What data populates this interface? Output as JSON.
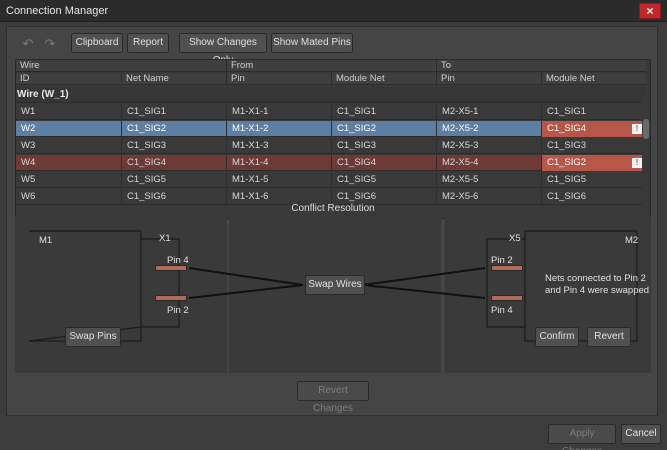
{
  "window": {
    "title": "Connection Manager",
    "close_label": "×"
  },
  "toolbar": {
    "undo_icon": "undo-icon",
    "redo_icon": "redo-icon",
    "buttons": [
      "Clipboard",
      "Report",
      "Show Changes Only",
      "Show Mated Pins"
    ]
  },
  "grid": {
    "group_headers": {
      "wire": "Wire",
      "from": "From",
      "to": "To"
    },
    "columns": [
      "ID",
      "Net Name",
      "Pin",
      "Module Net",
      "Pin",
      "Module Net"
    ],
    "group_label": "Wire (W_1)",
    "rows": [
      {
        "id": "W1",
        "net": "C1_SIG1",
        "from_pin": "M1-X1-1",
        "from_net": "C1_SIG1",
        "to_pin": "M2-X5-1",
        "to_net": "C1_SIG1",
        "state": "normal"
      },
      {
        "id": "W2",
        "net": "C1_SIG2",
        "from_pin": "M1-X1-2",
        "from_net": "C1_SIG2",
        "to_pin": "M2-X5-2",
        "to_net": "C1_SIG4",
        "state": "selected"
      },
      {
        "id": "W3",
        "net": "C1_SIG3",
        "from_pin": "M1-X1-3",
        "from_net": "C1_SIG3",
        "to_pin": "M2-X5-3",
        "to_net": "C1_SIG3",
        "state": "normal"
      },
      {
        "id": "W4",
        "net": "C1_SIG4",
        "from_pin": "M1-X1-4",
        "from_net": "C1_SIG4",
        "to_pin": "M2-X5-4",
        "to_net": "C1_SIG2",
        "state": "conflict"
      },
      {
        "id": "W5",
        "net": "C1_SIG5",
        "from_pin": "M1-X1-5",
        "from_net": "C1_SIG5",
        "to_pin": "M2-X5-5",
        "to_net": "C1_SIG5",
        "state": "normal"
      },
      {
        "id": "W6",
        "net": "C1_SIG6",
        "from_pin": "M1-X1-6",
        "from_net": "C1_SIG6",
        "to_pin": "M2-X5-6",
        "to_net": "C1_SIG6",
        "state": "normal"
      }
    ],
    "warn_glyph": "!"
  },
  "conflict": {
    "title": "Conflict Resolution",
    "left": {
      "module": "M1",
      "connector": "X1",
      "pin_a": "Pin 4",
      "pin_b": "Pin 2",
      "button": "Swap Pins"
    },
    "middle": {
      "button": "Swap Wires"
    },
    "right": {
      "module": "M2",
      "connector": "X5",
      "pin_a": "Pin 2",
      "pin_b": "Pin 4",
      "note": "Nets connected to Pin 2 and Pin 4 were swapped",
      "confirm": "Confirm",
      "revert": "Revert"
    },
    "revert_changes": "Revert Changes"
  },
  "footer": {
    "apply": "Apply Changes",
    "cancel": "Cancel"
  },
  "colors": {
    "selected_row": "#5d7fa3",
    "conflict_row": "#6d3a36",
    "conflict_cell": "#b6574a",
    "pin": "#b06a5c",
    "close": "#c0282b"
  }
}
